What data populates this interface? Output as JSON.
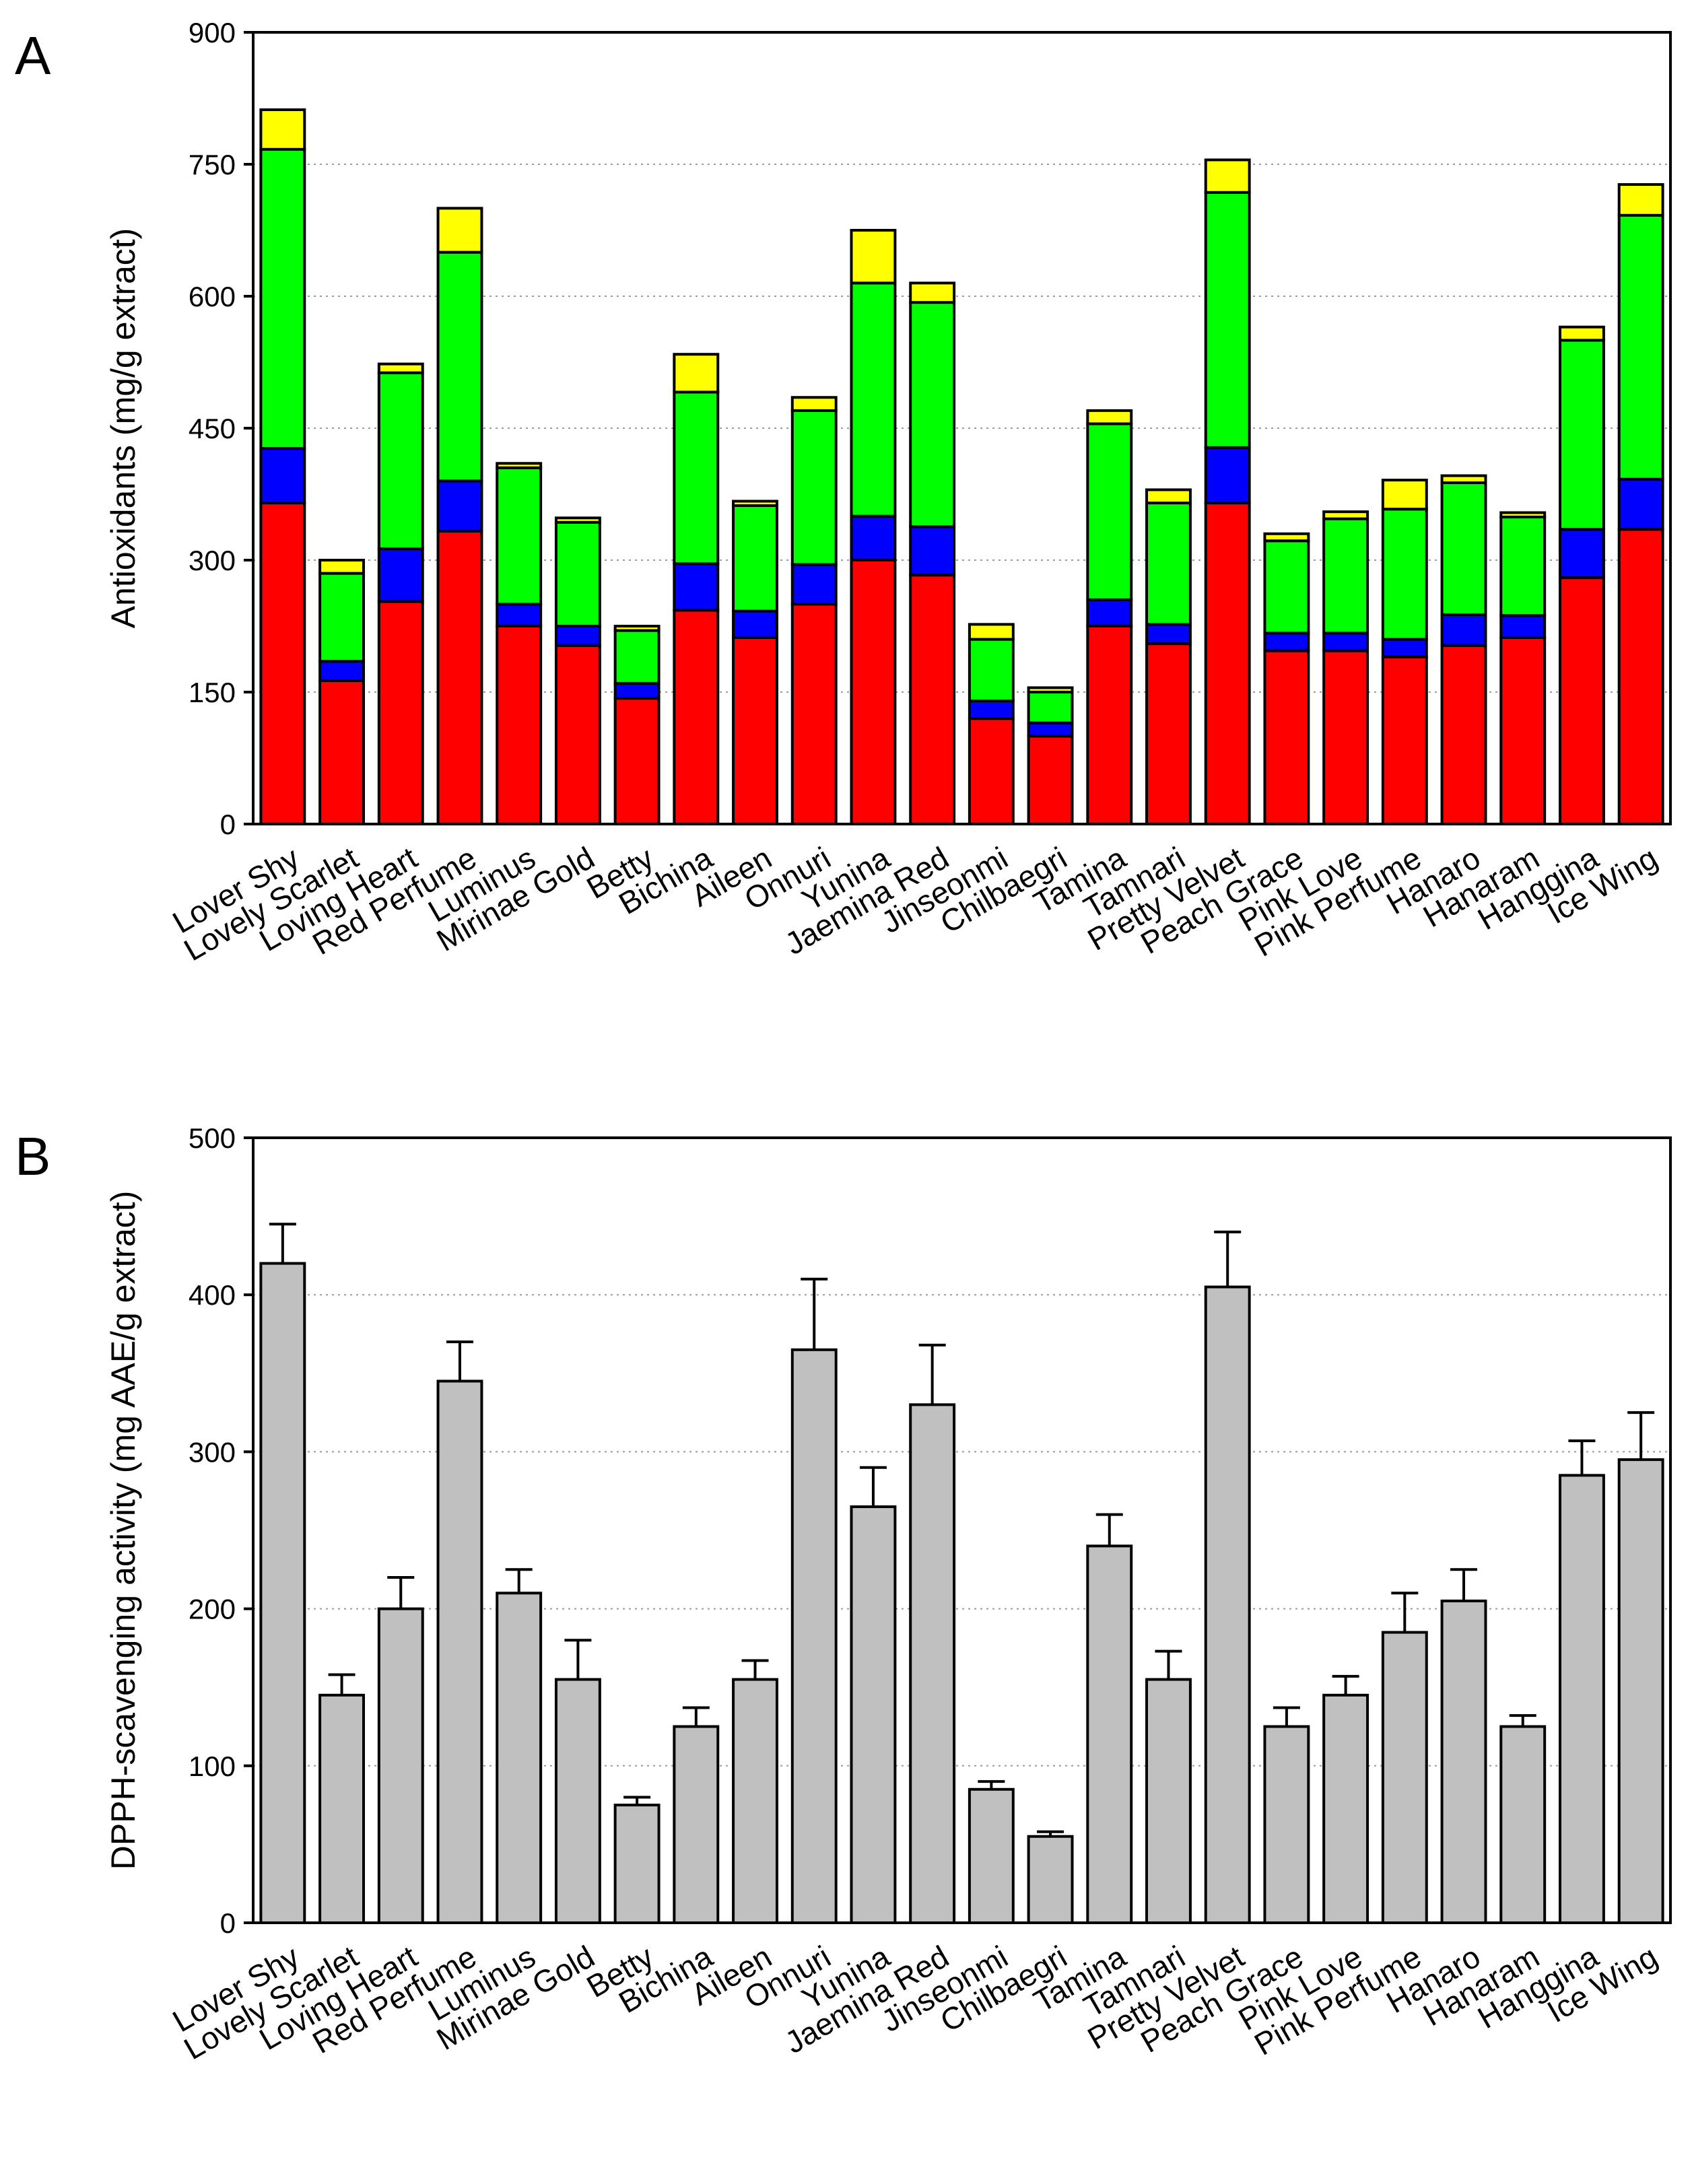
{
  "chart_data": [
    {
      "type": "bar",
      "stacked": true,
      "panel_label": "A",
      "title": "",
      "xlabel": "",
      "ylabel": "Antioxidants (mg/g extract)",
      "ylim": [
        0,
        900
      ],
      "yticks": [
        0,
        150,
        300,
        450,
        600,
        750,
        900
      ],
      "grid": "horizontal dotted",
      "legend": "none",
      "categories": [
        "Lover Shy",
        "Lovely Scarlet",
        "Loving Heart",
        "Red Perfume",
        "Luminus",
        "Mirinae Gold",
        "Betty",
        "Bichina",
        "Aileen",
        "Onnuri",
        "Yunina",
        "Jaemina Red",
        "Jinseonmi",
        "Chilbaegri",
        "Tamina",
        "Tamnari",
        "Pretty Velvet",
        "Peach Grace",
        "Pink Love",
        "Pink Perfume",
        "Hanaro",
        "Hanaram",
        "Hanggina",
        "Ice Wing"
      ],
      "series": [
        {
          "color": "#ff0000",
          "values": [
            365,
            163,
            253,
            333,
            225,
            203,
            143,
            243,
            212,
            250,
            300,
            283,
            120,
            100,
            225,
            205,
            365,
            197,
            197,
            190,
            203,
            212,
            280,
            335
          ]
        },
        {
          "color": "#0000ff",
          "values": [
            62,
            22,
            60,
            57,
            25,
            22,
            17,
            53,
            30,
            45,
            50,
            55,
            20,
            15,
            30,
            22,
            63,
            20,
            20,
            20,
            35,
            25,
            55,
            57
          ]
        },
        {
          "color": "#00ff00",
          "values": [
            340,
            100,
            200,
            260,
            155,
            118,
            60,
            195,
            120,
            175,
            265,
            255,
            70,
            35,
            200,
            138,
            290,
            105,
            130,
            148,
            150,
            112,
            215,
            300
          ]
        },
        {
          "color": "#ffff00",
          "values": [
            45,
            15,
            10,
            50,
            5,
            5,
            5,
            43,
            5,
            15,
            60,
            22,
            17,
            5,
            15,
            15,
            37,
            8,
            8,
            33,
            8,
            5,
            15,
            35
          ]
        }
      ]
    },
    {
      "type": "bar",
      "panel_label": "B",
      "title": "",
      "xlabel": "",
      "ylabel": "DPPH-scavenging activity (mg AAE/g extract)",
      "ylim": [
        0,
        500
      ],
      "yticks": [
        0,
        100,
        200,
        300,
        400,
        500
      ],
      "grid": "horizontal dotted",
      "legend": "none",
      "bar_color": "#c0c0c0",
      "categories": [
        "Lover Shy",
        "Lovely Scarlet",
        "Loving Heart",
        "Red Perfume",
        "Luminus",
        "Mirinae Gold",
        "Betty",
        "Bichina",
        "Aileen",
        "Onnuri",
        "Yunina",
        "Jaemina Red",
        "Jinseonmi",
        "Chilbaegri",
        "Tamina",
        "Tamnari",
        "Pretty Velvet",
        "Peach Grace",
        "Pink Love",
        "Pink Perfume",
        "Hanaro",
        "Hanaram",
        "Hanggina",
        "Ice Wing"
      ],
      "values": [
        420,
        145,
        200,
        345,
        210,
        155,
        75,
        125,
        155,
        365,
        265,
        330,
        85,
        55,
        240,
        155,
        405,
        125,
        145,
        185,
        205,
        125,
        285,
        295
      ],
      "errors": [
        25,
        13,
        20,
        25,
        15,
        25,
        5,
        12,
        12,
        45,
        25,
        38,
        5,
        3,
        20,
        18,
        35,
        12,
        12,
        25,
        20,
        7,
        22,
        30
      ]
    }
  ]
}
